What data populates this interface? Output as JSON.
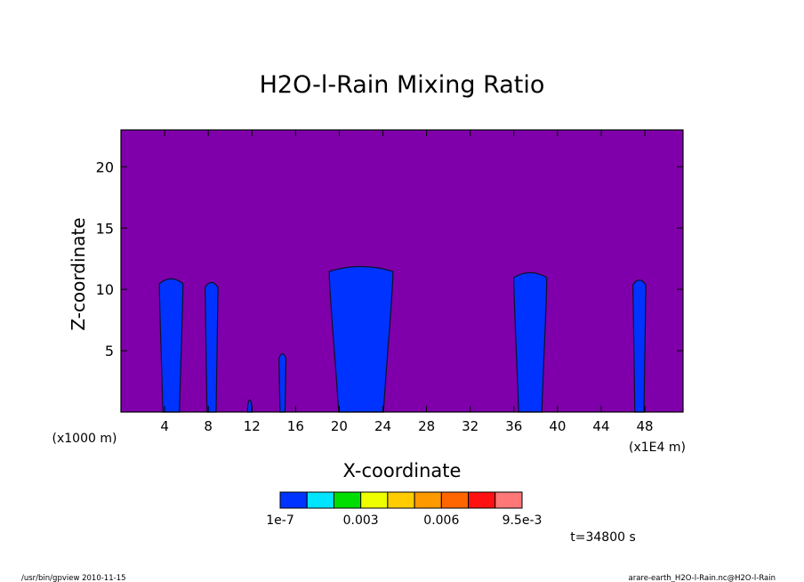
{
  "chart_data": {
    "type": "contour",
    "title": "H2O-l-Rain Mixing Ratio",
    "xlabel": "X-coordinate",
    "ylabel": "Z-coordinate",
    "x_unit_left": "(x1000 m)",
    "x_unit_right": "(x1E4 m)",
    "xlim": [
      0,
      51.5
    ],
    "ylim": [
      0,
      23
    ],
    "x_ticks": [
      4,
      8,
      12,
      16,
      20,
      24,
      28,
      32,
      36,
      40,
      44,
      48
    ],
    "y_ticks": [
      5,
      10,
      15,
      20
    ],
    "background_color": "#7f00aa",
    "colorbar": {
      "colors": [
        "#0033ff",
        "#00e5ff",
        "#00dd00",
        "#eeff00",
        "#ffcc00",
        "#ff9900",
        "#ff6600",
        "#ff1111",
        "#ff7777"
      ],
      "labels": [
        "1e-7",
        "0.003",
        "0.006",
        "9.5e-3"
      ]
    },
    "series": [
      {
        "x_center": 4.6,
        "half_width": 1.0,
        "top": 10.9
      },
      {
        "x_center": 8.3,
        "half_width": 0.55,
        "top": 10.6
      },
      {
        "x_center": 11.8,
        "half_width": 0.2,
        "top": 1.0
      },
      {
        "x_center": 14.8,
        "half_width": 0.3,
        "top": 4.8
      },
      {
        "x_center": 22.0,
        "half_width": 2.7,
        "top": 11.9
      },
      {
        "x_center": 37.5,
        "half_width": 1.4,
        "top": 11.4
      },
      {
        "x_center": 47.5,
        "half_width": 0.55,
        "top": 10.8
      }
    ],
    "time_label": "t=34800 s"
  },
  "footer": {
    "left": "/usr/bin/gpview  2010-11-15",
    "right": "arare-earth_H2O-l-Rain.nc@H2O-l-Rain"
  }
}
